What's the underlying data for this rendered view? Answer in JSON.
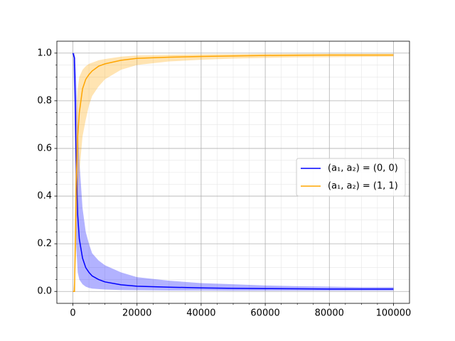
{
  "chart_data": {
    "type": "line",
    "x": [
      0,
      500,
      1000,
      1500,
      2000,
      3000,
      4000,
      5000,
      6000,
      8000,
      10000,
      15000,
      20000,
      30000,
      40000,
      50000,
      60000,
      70000,
      80000,
      90000,
      100000
    ],
    "series": [
      {
        "name": "(a₁, a₂) = (0, 0)",
        "color": "#0000ff",
        "values": [
          1.0,
          0.98,
          0.55,
          0.32,
          0.22,
          0.14,
          0.1,
          0.08,
          0.065,
          0.05,
          0.04,
          0.028,
          0.022,
          0.018,
          0.015,
          0.013,
          0.012,
          0.011,
          0.01,
          0.01,
          0.01
        ],
        "upper": [
          1.0,
          1.0,
          0.9,
          0.7,
          0.55,
          0.35,
          0.25,
          0.2,
          0.16,
          0.13,
          0.11,
          0.08,
          0.06,
          0.045,
          0.035,
          0.03,
          0.025,
          0.022,
          0.02,
          0.018,
          0.018
        ],
        "lower": [
          1.0,
          0.8,
          0.2,
          0.08,
          0.05,
          0.03,
          0.02,
          0.015,
          0.012,
          0.01,
          0.008,
          0.006,
          0.005,
          0.004,
          0.004,
          0.003,
          0.003,
          0.003,
          0.003,
          0.003,
          0.003
        ]
      },
      {
        "name": "(a₁, a₂) = (1, 1)",
        "color": "#ffa500",
        "values": [
          0.0,
          0.0,
          0.45,
          0.65,
          0.75,
          0.85,
          0.89,
          0.91,
          0.925,
          0.945,
          0.955,
          0.97,
          0.978,
          0.983,
          0.986,
          0.988,
          0.99,
          0.991,
          0.992,
          0.992,
          0.992
        ],
        "upper": [
          0.0,
          0.05,
          0.75,
          0.85,
          0.9,
          0.93,
          0.945,
          0.955,
          0.96,
          0.97,
          0.975,
          0.985,
          0.99,
          0.993,
          0.995,
          0.996,
          0.997,
          0.998,
          0.998,
          0.998,
          0.998
        ],
        "lower": [
          0.0,
          0.0,
          0.15,
          0.4,
          0.5,
          0.65,
          0.72,
          0.78,
          0.82,
          0.86,
          0.89,
          0.93,
          0.95,
          0.965,
          0.972,
          0.977,
          0.98,
          0.982,
          0.983,
          0.984,
          0.985
        ]
      }
    ],
    "xlim": [
      -5000,
      105000
    ],
    "ylim": [
      -0.05,
      1.05
    ],
    "xticks": [
      0,
      20000,
      40000,
      60000,
      80000,
      100000
    ],
    "yticks": [
      {
        "value": 0,
        "label": "0.0"
      },
      0.2,
      0.4,
      0.6,
      0.8,
      {
        "value": 1,
        "label": "1.0"
      }
    ],
    "xminorticks": [
      5000,
      10000,
      15000,
      25000,
      30000,
      35000,
      45000,
      50000,
      55000,
      65000,
      70000,
      75000,
      85000,
      90000,
      95000
    ],
    "yminorticks": [
      0.05,
      0.1,
      0.15,
      0.25,
      0.3,
      0.35,
      0.45,
      0.5,
      0.55,
      0.65,
      0.7,
      0.75,
      0.85,
      0.9,
      0.95
    ],
    "grid": true,
    "minor_grid": true,
    "band_opacity": 0.3,
    "legend": "center right"
  }
}
